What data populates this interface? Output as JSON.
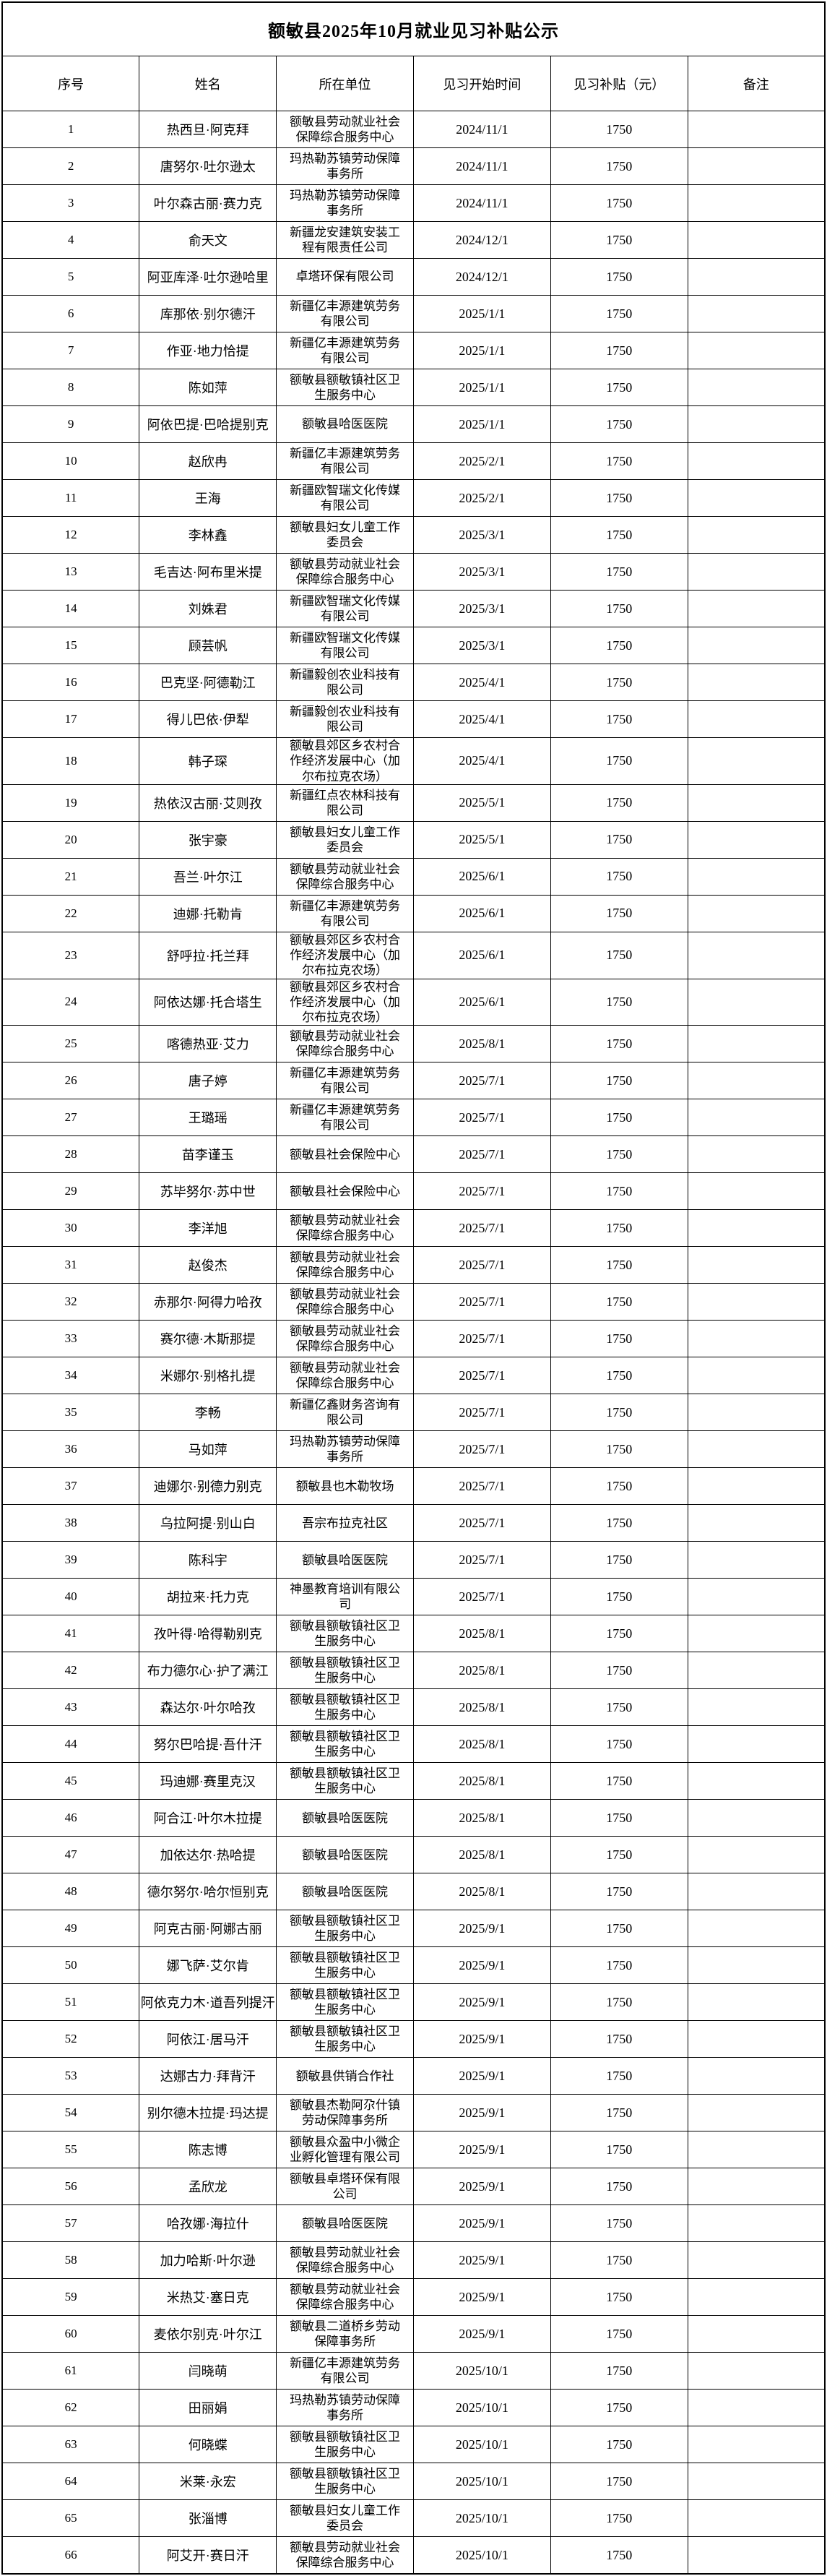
{
  "table": {
    "title": "额敏县2025年10月就业见习补贴公示",
    "columns": [
      "序号",
      "姓名",
      "所在单位",
      "见习开始时间",
      "见习补贴（元）",
      "备注"
    ],
    "rows": [
      {
        "no": "1",
        "name": "热西旦·阿克拜",
        "unit": "额敏县劳动就业社会保障综合服务中心",
        "start_date": "2024/11/1",
        "subsidy": "1750",
        "note": ""
      },
      {
        "no": "2",
        "name": "唐努尔·吐尔逊太",
        "unit": "玛热勒苏镇劳动保障事务所",
        "start_date": "2024/11/1",
        "subsidy": "1750",
        "note": ""
      },
      {
        "no": "3",
        "name": "叶尔森古丽·赛力克",
        "unit": "玛热勒苏镇劳动保障事务所",
        "start_date": "2024/11/1",
        "subsidy": "1750",
        "note": ""
      },
      {
        "no": "4",
        "name": "俞天文",
        "unit": "新疆龙安建筑安装工程有限责任公司",
        "start_date": "2024/12/1",
        "subsidy": "1750",
        "note": ""
      },
      {
        "no": "5",
        "name": "阿亚库泽·吐尔逊哈里",
        "unit": "卓塔环保有限公司",
        "start_date": "2024/12/1",
        "subsidy": "1750",
        "note": ""
      },
      {
        "no": "6",
        "name": "库那依·别尔德汗",
        "unit": "新疆亿丰源建筑劳务有限公司",
        "start_date": "2025/1/1",
        "subsidy": "1750",
        "note": ""
      },
      {
        "no": "7",
        "name": "作亚·地力恰提",
        "unit": "新疆亿丰源建筑劳务有限公司",
        "start_date": "2025/1/1",
        "subsidy": "1750",
        "note": ""
      },
      {
        "no": "8",
        "name": "陈如萍",
        "unit": "额敏县额敏镇社区卫生服务中心",
        "start_date": "2025/1/1",
        "subsidy": "1750",
        "note": ""
      },
      {
        "no": "9",
        "name": "阿依巴提·巴哈提别克",
        "unit": "额敏县哈医医院",
        "start_date": "2025/1/1",
        "subsidy": "1750",
        "note": ""
      },
      {
        "no": "10",
        "name": "赵欣冉",
        "unit": "新疆亿丰源建筑劳务有限公司",
        "start_date": "2025/2/1",
        "subsidy": "1750",
        "note": ""
      },
      {
        "no": "11",
        "name": "王海",
        "unit": "新疆欧智瑞文化传媒有限公司",
        "start_date": "2025/2/1",
        "subsidy": "1750",
        "note": ""
      },
      {
        "no": "12",
        "name": "李林鑫",
        "unit": "额敏县妇女儿童工作委员会",
        "start_date": "2025/3/1",
        "subsidy": "1750",
        "note": ""
      },
      {
        "no": "13",
        "name": "毛吉达·阿布里米提",
        "unit": "额敏县劳动就业社会保障综合服务中心",
        "start_date": "2025/3/1",
        "subsidy": "1750",
        "note": ""
      },
      {
        "no": "14",
        "name": "刘姝君",
        "unit": "新疆欧智瑞文化传媒有限公司",
        "start_date": "2025/3/1",
        "subsidy": "1750",
        "note": ""
      },
      {
        "no": "15",
        "name": "顾芸帆",
        "unit": "新疆欧智瑞文化传媒有限公司",
        "start_date": "2025/3/1",
        "subsidy": "1750",
        "note": ""
      },
      {
        "no": "16",
        "name": "巴克坚·阿德勒江",
        "unit": "新疆毅创农业科技有限公司",
        "start_date": "2025/4/1",
        "subsidy": "1750",
        "note": ""
      },
      {
        "no": "17",
        "name": "得儿巴依·伊犁",
        "unit": "新疆毅创农业科技有限公司",
        "start_date": "2025/4/1",
        "subsidy": "1750",
        "note": ""
      },
      {
        "no": "18",
        "name": "韩子琛",
        "unit": "额敏县郊区乡农村合作经济发展中心（加尔布拉克农场）",
        "start_date": "2025/4/1",
        "subsidy": "1750",
        "note": ""
      },
      {
        "no": "19",
        "name": "热依汉古丽·艾则孜",
        "unit": "新疆红点农林科技有限公司",
        "start_date": "2025/5/1",
        "subsidy": "1750",
        "note": ""
      },
      {
        "no": "20",
        "name": "张宇豪",
        "unit": "额敏县妇女儿童工作委员会",
        "start_date": "2025/5/1",
        "subsidy": "1750",
        "note": ""
      },
      {
        "no": "21",
        "name": "吾兰·叶尔江",
        "unit": "额敏县劳动就业社会保障综合服务中心",
        "start_date": "2025/6/1",
        "subsidy": "1750",
        "note": ""
      },
      {
        "no": "22",
        "name": "迪娜·托勒肯",
        "unit": "新疆亿丰源建筑劳务有限公司",
        "start_date": "2025/6/1",
        "subsidy": "1750",
        "note": ""
      },
      {
        "no": "23",
        "name": "舒呼拉·托兰拜",
        "unit": "额敏县郊区乡农村合作经济发展中心（加尔布拉克农场）",
        "start_date": "2025/6/1",
        "subsidy": "1750",
        "note": ""
      },
      {
        "no": "24",
        "name": "阿依达娜·托合塔生",
        "unit": "额敏县郊区乡农村合作经济发展中心（加尔布拉克农场）",
        "start_date": "2025/6/1",
        "subsidy": "1750",
        "note": ""
      },
      {
        "no": "25",
        "name": "喀德热亚·艾力",
        "unit": "额敏县劳动就业社会保障综合服务中心",
        "start_date": "2025/8/1",
        "subsidy": "1750",
        "note": ""
      },
      {
        "no": "26",
        "name": "唐子婷",
        "unit": "新疆亿丰源建筑劳务有限公司",
        "start_date": "2025/7/1",
        "subsidy": "1750",
        "note": ""
      },
      {
        "no": "27",
        "name": "王璐瑶",
        "unit": "新疆亿丰源建筑劳务有限公司",
        "start_date": "2025/7/1",
        "subsidy": "1750",
        "note": ""
      },
      {
        "no": "28",
        "name": "苗李谨玉",
        "unit": "额敏县社会保险中心",
        "start_date": "2025/7/1",
        "subsidy": "1750",
        "note": ""
      },
      {
        "no": "29",
        "name": "苏毕努尔·苏中世",
        "unit": "额敏县社会保险中心",
        "start_date": "2025/7/1",
        "subsidy": "1750",
        "note": ""
      },
      {
        "no": "30",
        "name": "李洋旭",
        "unit": "额敏县劳动就业社会保障综合服务中心",
        "start_date": "2025/7/1",
        "subsidy": "1750",
        "note": ""
      },
      {
        "no": "31",
        "name": "赵俊杰",
        "unit": "额敏县劳动就业社会保障综合服务中心",
        "start_date": "2025/7/1",
        "subsidy": "1750",
        "note": ""
      },
      {
        "no": "32",
        "name": "赤那尔·阿得力哈孜",
        "unit": "额敏县劳动就业社会保障综合服务中心",
        "start_date": "2025/7/1",
        "subsidy": "1750",
        "note": ""
      },
      {
        "no": "33",
        "name": "赛尔德·木斯那提",
        "unit": "额敏县劳动就业社会保障综合服务中心",
        "start_date": "2025/7/1",
        "subsidy": "1750",
        "note": ""
      },
      {
        "no": "34",
        "name": "米娜尔·别格扎提",
        "unit": "额敏县劳动就业社会保障综合服务中心",
        "start_date": "2025/7/1",
        "subsidy": "1750",
        "note": ""
      },
      {
        "no": "35",
        "name": "李畅",
        "unit": "新疆亿鑫财务咨询有限公司",
        "start_date": "2025/7/1",
        "subsidy": "1750",
        "note": ""
      },
      {
        "no": "36",
        "name": "马如萍",
        "unit": "玛热勒苏镇劳动保障事务所",
        "start_date": "2025/7/1",
        "subsidy": "1750",
        "note": ""
      },
      {
        "no": "37",
        "name": "迪娜尔·别德力别克",
        "unit": "额敏县也木勒牧场",
        "start_date": "2025/7/1",
        "subsidy": "1750",
        "note": ""
      },
      {
        "no": "38",
        "name": "乌拉阿提·别山白",
        "unit": "吾宗布拉克社区",
        "start_date": "2025/7/1",
        "subsidy": "1750",
        "note": ""
      },
      {
        "no": "39",
        "name": "陈科宇",
        "unit": "额敏县哈医医院",
        "start_date": "2025/7/1",
        "subsidy": "1750",
        "note": ""
      },
      {
        "no": "40",
        "name": "胡拉来·托力克",
        "unit": "神墨教育培训有限公司",
        "start_date": "2025/7/1",
        "subsidy": "1750",
        "note": ""
      },
      {
        "no": "41",
        "name": "孜叶得·哈得勒别克",
        "unit": "额敏县额敏镇社区卫生服务中心",
        "start_date": "2025/8/1",
        "subsidy": "1750",
        "note": ""
      },
      {
        "no": "42",
        "name": "布力德尔心·护了满江",
        "unit": "额敏县额敏镇社区卫生服务中心",
        "start_date": "2025/8/1",
        "subsidy": "1750",
        "note": ""
      },
      {
        "no": "43",
        "name": "森达尔·叶尔哈孜",
        "unit": "额敏县额敏镇社区卫生服务中心",
        "start_date": "2025/8/1",
        "subsidy": "1750",
        "note": ""
      },
      {
        "no": "44",
        "name": "努尔巴哈提·吾什汗",
        "unit": "额敏县额敏镇社区卫生服务中心",
        "start_date": "2025/8/1",
        "subsidy": "1750",
        "note": ""
      },
      {
        "no": "45",
        "name": "玛迪娜·赛里克汉",
        "unit": "额敏县额敏镇社区卫生服务中心",
        "start_date": "2025/8/1",
        "subsidy": "1750",
        "note": ""
      },
      {
        "no": "46",
        "name": "阿合江·叶尔木拉提",
        "unit": "额敏县哈医医院",
        "start_date": "2025/8/1",
        "subsidy": "1750",
        "note": ""
      },
      {
        "no": "47",
        "name": "加依达尔·热哈提",
        "unit": "额敏县哈医医院",
        "start_date": "2025/8/1",
        "subsidy": "1750",
        "note": ""
      },
      {
        "no": "48",
        "name": "德尔努尔·哈尔恒别克",
        "unit": "额敏县哈医医院",
        "start_date": "2025/8/1",
        "subsidy": "1750",
        "note": ""
      },
      {
        "no": "49",
        "name": "阿克古丽·阿娜古丽",
        "unit": "额敏县额敏镇社区卫生服务中心",
        "start_date": "2025/9/1",
        "subsidy": "1750",
        "note": ""
      },
      {
        "no": "50",
        "name": "娜飞萨·艾尔肯",
        "unit": "额敏县额敏镇社区卫生服务中心",
        "start_date": "2025/9/1",
        "subsidy": "1750",
        "note": ""
      },
      {
        "no": "51",
        "name": "阿依克力木·道吾列提汗",
        "unit": "额敏县额敏镇社区卫生服务中心",
        "start_date": "2025/9/1",
        "subsidy": "1750",
        "note": ""
      },
      {
        "no": "52",
        "name": "阿依江·居马汗",
        "unit": "额敏县额敏镇社区卫生服务中心",
        "start_date": "2025/9/1",
        "subsidy": "1750",
        "note": ""
      },
      {
        "no": "53",
        "name": "达娜古力·拜背汗",
        "unit": "额敏县供销合作社",
        "start_date": "2025/9/1",
        "subsidy": "1750",
        "note": ""
      },
      {
        "no": "54",
        "name": "别尔德木拉提·玛达提",
        "unit": "额敏县杰勒阿尕什镇劳动保障事务所",
        "start_date": "2025/9/1",
        "subsidy": "1750",
        "note": ""
      },
      {
        "no": "55",
        "name": "陈志博",
        "unit": "额敏县众盈中小微企业孵化管理有限公司",
        "start_date": "2025/9/1",
        "subsidy": "1750",
        "note": ""
      },
      {
        "no": "56",
        "name": "孟欣龙",
        "unit": "额敏县卓塔环保有限公司",
        "start_date": "2025/9/1",
        "subsidy": "1750",
        "note": ""
      },
      {
        "no": "57",
        "name": "哈孜娜·海拉什",
        "unit": "额敏县哈医医院",
        "start_date": "2025/9/1",
        "subsidy": "1750",
        "note": ""
      },
      {
        "no": "58",
        "name": "加力哈斯·叶尔逊",
        "unit": "额敏县劳动就业社会保障综合服务中心",
        "start_date": "2025/9/1",
        "subsidy": "1750",
        "note": ""
      },
      {
        "no": "59",
        "name": "米热艾·塞日克",
        "unit": "额敏县劳动就业社会保障综合服务中心",
        "start_date": "2025/9/1",
        "subsidy": "1750",
        "note": ""
      },
      {
        "no": "60",
        "name": "麦依尔别克·叶尔江",
        "unit": "额敏县二道桥乡劳动保障事务所",
        "start_date": "2025/9/1",
        "subsidy": "1750",
        "note": ""
      },
      {
        "no": "61",
        "name": "闫晓萌",
        "unit": "新疆亿丰源建筑劳务有限公司",
        "start_date": "2025/10/1",
        "subsidy": "1750",
        "note": ""
      },
      {
        "no": "62",
        "name": "田丽娟",
        "unit": "玛热勒苏镇劳动保障事务所",
        "start_date": "2025/10/1",
        "subsidy": "1750",
        "note": ""
      },
      {
        "no": "63",
        "name": "何晓蝶",
        "unit": "额敏县额敏镇社区卫生服务中心",
        "start_date": "2025/10/1",
        "subsidy": "1750",
        "note": ""
      },
      {
        "no": "64",
        "name": "米莱·永宏",
        "unit": "额敏县额敏镇社区卫生服务中心",
        "start_date": "2025/10/1",
        "subsidy": "1750",
        "note": ""
      },
      {
        "no": "65",
        "name": "张淄博",
        "unit": "额敏县妇女儿童工作委员会",
        "start_date": "2025/10/1",
        "subsidy": "1750",
        "note": ""
      },
      {
        "no": "66",
        "name": "阿艾开·赛日汗",
        "unit": "额敏县劳动就业社会保障综合服务中心",
        "start_date": "2025/10/1",
        "subsidy": "1750",
        "note": ""
      }
    ]
  },
  "colors": {
    "background": "#ffffff",
    "text": "#000000",
    "border": "#000000"
  }
}
